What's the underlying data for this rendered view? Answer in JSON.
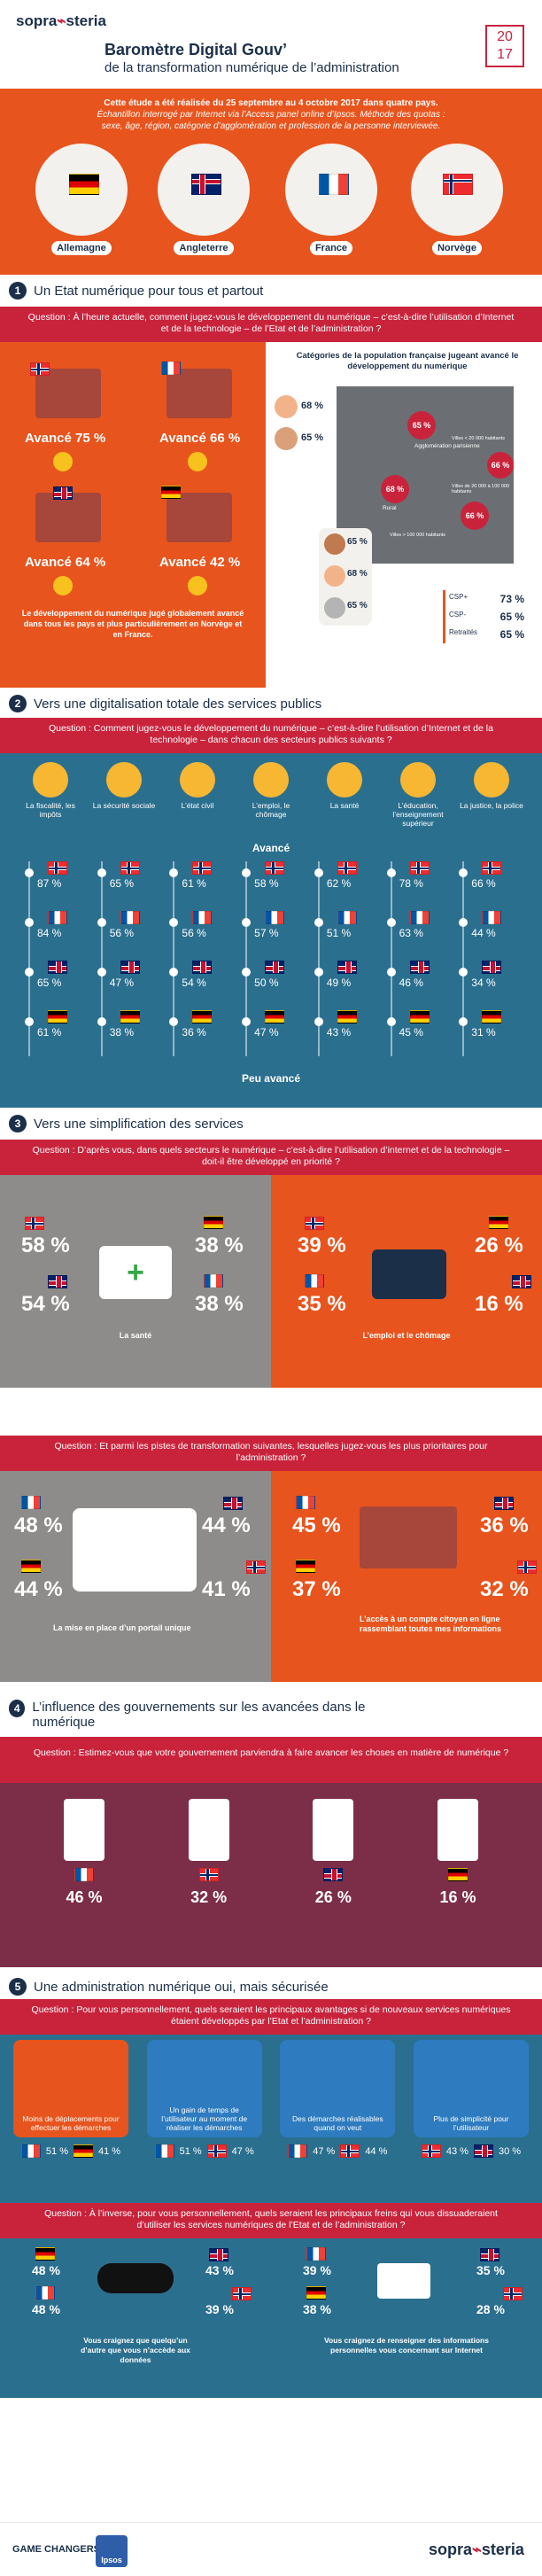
{
  "header": {
    "logo": "sopra",
    "logo2": "steria",
    "title": "Baromètre Digital Gouv’",
    "subtitle": "de la transformation numérique de l’administration",
    "year_top": "20",
    "year_bot": "17"
  },
  "intro": {
    "line1": "Cette étude a été réalisée du 25 septembre au 4 octobre 2017 dans quatre pays.",
    "line2": "Échantillon interrogé par Internet via l’Access panel online d’Ipsos. Méthode des quotas :",
    "line3": "sexe, âge, région, catégorie d’agglomération et profession de la personne interviewée.",
    "countries": [
      "Allemagne",
      "Angleterre",
      "France",
      "Norvège"
    ]
  },
  "s1": {
    "num": "1",
    "title": "Un Etat numérique pour tous et partout",
    "question": "Question : À l’heure actuelle, comment jugez-vous le développement du numérique – c’est-à-dire l’utilisation d’Internet et de la technologie – de l’Etat et de l’administration ?",
    "norway": "Avancé 75 %",
    "france": "Avancé 66 %",
    "uk": "Avancé 64 %",
    "germany": "Avancé 42 %",
    "conclusion": "Le développement du numérique jugé globalement avancé dans tous les pays et plus particulièrement en Norvège et en France.",
    "map_title": "Catégories de la population française jugeant avancé le développement du numérique",
    "young": "68 %",
    "old": "65 %",
    "p_urb": "65 %",
    "p_par": "66 %",
    "p_rural": "68 %",
    "p_city": "66 %",
    "f1": "65 %",
    "f2": "68 %",
    "f3": "65 %",
    "agglo": "Agglomération parisienne",
    "rural": "Rural",
    "v1": "Villes de 20 000 à 100 000 habitants",
    "v2": "Villes > 100 000 habitants",
    "v3": "Villes < 20 000 habitants",
    "csp_plus": "CSP+",
    "csp_minus": "CSP-",
    "retired": "Retraités",
    "v_csp_plus": "73 %",
    "v_csp_minus": "65 %",
    "v_retired": "65 %"
  },
  "s2": {
    "num": "2",
    "title": "Vers une digitalisation totale des services publics",
    "question": "Question : Comment jugez-vous le développement du numérique – c’est-à-dire l’utilisation d’Internet et de la technologie – dans chacun des secteurs publics suivants ?",
    "sectors": [
      "La fiscalité, les impôts",
      "La sécurité sociale",
      "L’état civil",
      "L’emploi, le chômage",
      "La santé",
      "L’éducation, l’enseignement supérieur",
      "La justice, la police"
    ],
    "advanced": "Avancé",
    "less": "Peu avancé",
    "rows": [
      [
        "87 %",
        "65 %",
        "61 %",
        "58 %",
        "62 %",
        "78 %",
        "66 %"
      ],
      [
        "84 %",
        "56 %",
        "56 %",
        "57 %",
        "51 %",
        "63 %",
        "44 %"
      ],
      [
        "65 %",
        "47 %",
        "54 %",
        "50 %",
        "49 %",
        "46 %",
        "34 %"
      ],
      [
        "61 %",
        "38 %",
        "36 %",
        "47 %",
        "43 %",
        "45 %",
        "31 %"
      ]
    ]
  },
  "s3": {
    "num": "3",
    "title": "Vers une simplification des services",
    "q1": "Question : D’après vous, dans quels secteurs le numérique – c’est-à-dire l’utilisation d’internet et de la technologie – doit-il être développé en priorité ?",
    "health": {
      "label": "La santé",
      "no": "58 %",
      "de": "38 %",
      "uk": "54 %",
      "fr": "38 %"
    },
    "job": {
      "label": "L’emploi et le chômage",
      "no": "39 %",
      "de": "26 %",
      "fr": "35 %",
      "uk": "16 %"
    },
    "q2": "Question : Et parmi les pistes de transformation suivantes, lesquelles jugez-vous les plus prioritaires pour l’administration ?",
    "portal": {
      "label": "La mise en place d’un portail unique",
      "fr": "48 %",
      "uk": "44 %",
      "de": "44 %",
      "no": "41 %"
    },
    "account": {
      "label": "L’accès à un compte citoyen en ligne rassemblant toutes mes informations",
      "fr": "45 %",
      "uk": "36 %",
      "de": "37 %",
      "no": "32 %"
    }
  },
  "s4": {
    "num": "4",
    "title": "L’influence des gouvernements sur les avancées dans le numérique",
    "question": "Question : Estimez-vous que votre gouvernement parviendra à faire avancer les choses en matière de numérique ?",
    "fr": "46 %",
    "no": "32 %",
    "uk": "26 %",
    "de": "16 %"
  },
  "s5": {
    "num": "5",
    "title": "Une administration numérique oui, mais sécurisée",
    "q1": "Question : Pour vous personnellement, quels seraient les principaux avantages si de nouveaux services numériques étaient développés par l’Etat et l’administration ?",
    "adv": [
      {
        "label": "Moins de déplacements pour effectuer les démarches",
        "a": "51 %",
        "b": "41 %"
      },
      {
        "label": "Un gain de temps de l’utilisateur au moment de réaliser les démarches",
        "a": "51 %",
        "b": "47 %"
      },
      {
        "label": "Des démarches réalisables quand on veut",
        "a": "47 %",
        "b": "44 %"
      },
      {
        "label": "Plus de simplicité pour l’utilisateur",
        "a": "43 %",
        "b": "30 %"
      }
    ],
    "q2": "Question : À l’inverse, pour vous personnellement, quels seraient les principaux freins qui vous dissuaderaient d’utiliser les services numériques de l’Etat et de l’administration ?",
    "fear1": {
      "label": "Vous craignez que quelqu’un d’autre que vous n’accède aux données",
      "de": "48 %",
      "fr": "48 %",
      "uk": "43 %",
      "no": "39 %"
    },
    "fear2": {
      "label": "Vous craignez de renseigner des informations personnelles vous concernant sur Internet",
      "fr": "39 %",
      "de": "38 %",
      "uk": "35 %",
      "no": "28 %"
    }
  },
  "footer": {
    "game": "GAME CHANGERS",
    "ipsos": "Ipsos",
    "logo": "sopra",
    "logo2": "steria"
  }
}
